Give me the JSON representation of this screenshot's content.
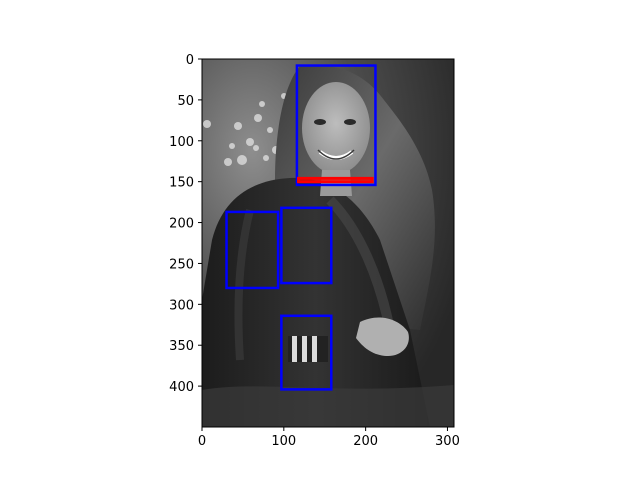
{
  "figure": {
    "image_description_icon": "grayscale-photo-smiling-young-woman-long-hair-dark-jacket",
    "colors": {
      "box_blue": "#0000ff",
      "box_red": "#ff0000",
      "axis": "#000000",
      "background": "#ffffff"
    }
  },
  "chart_data": {
    "type": "image-with-bounding-boxes",
    "title": "",
    "xlabel": "",
    "ylabel": "",
    "xlim": [
      0,
      308
    ],
    "ylim": [
      450,
      0
    ],
    "x_ticks": [
      0,
      100,
      200,
      300
    ],
    "y_ticks": [
      0,
      50,
      100,
      150,
      200,
      250,
      300,
      350,
      400
    ],
    "boxes": [
      {
        "color": "blue",
        "x0": 116,
        "y0": 8,
        "x1": 212,
        "y1": 154
      },
      {
        "color": "red",
        "x0": 118,
        "y0": 146,
        "x1": 208,
        "y1": 150
      },
      {
        "color": "blue",
        "x0": 30,
        "y0": 187,
        "x1": 93,
        "y1": 280
      },
      {
        "color": "blue",
        "x0": 97,
        "y0": 182,
        "x1": 158,
        "y1": 274
      },
      {
        "color": "blue",
        "x0": 97,
        "y0": 314,
        "x1": 158,
        "y1": 404
      }
    ]
  }
}
